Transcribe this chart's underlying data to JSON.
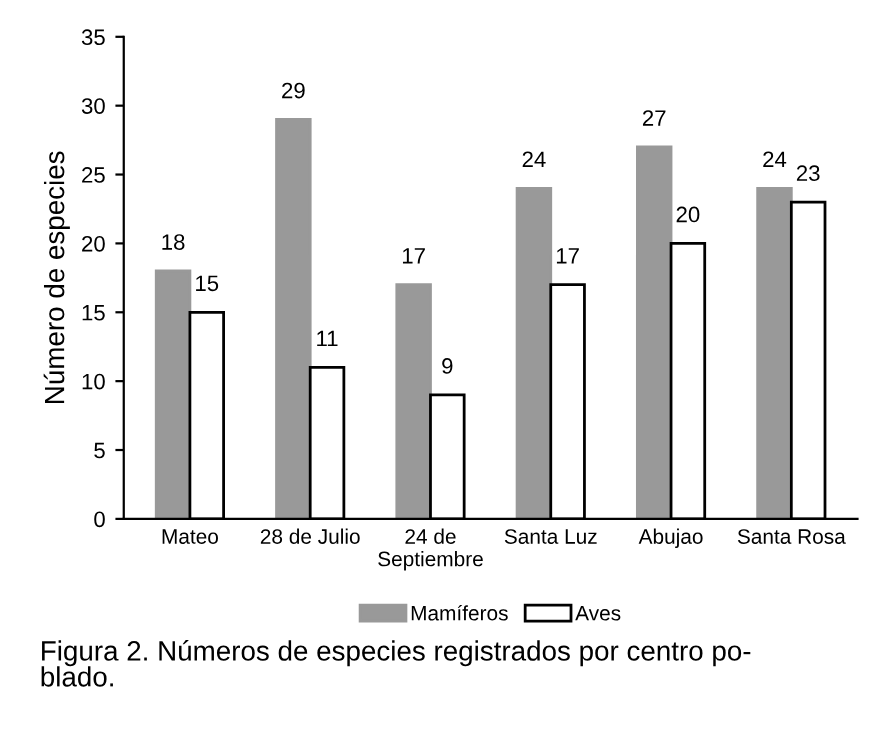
{
  "chart_data": {
    "type": "bar",
    "ylabel": "Número de especies",
    "categories": [
      "Mateo",
      "28 de Julio",
      "24 de\nSeptiembre",
      "Santa Luz",
      "Abujao",
      "Santa Rosa"
    ],
    "series": [
      {
        "name": "Mamíferos",
        "color": "#999999",
        "values": [
          18,
          29,
          17,
          24,
          27,
          24
        ]
      },
      {
        "name": "Aves",
        "color": "#ffffff",
        "values": [
          15,
          11,
          9,
          17,
          20,
          23
        ]
      }
    ],
    "ylim": [
      0,
      35
    ],
    "yticks": [
      0,
      5,
      10,
      15,
      20,
      25,
      30,
      35
    ],
    "grid": false,
    "legend": "bottom",
    "data_labels": true,
    "annotations": [
      "Figura 2. Números de especies registrados por centro po-\nblado."
    ]
  }
}
